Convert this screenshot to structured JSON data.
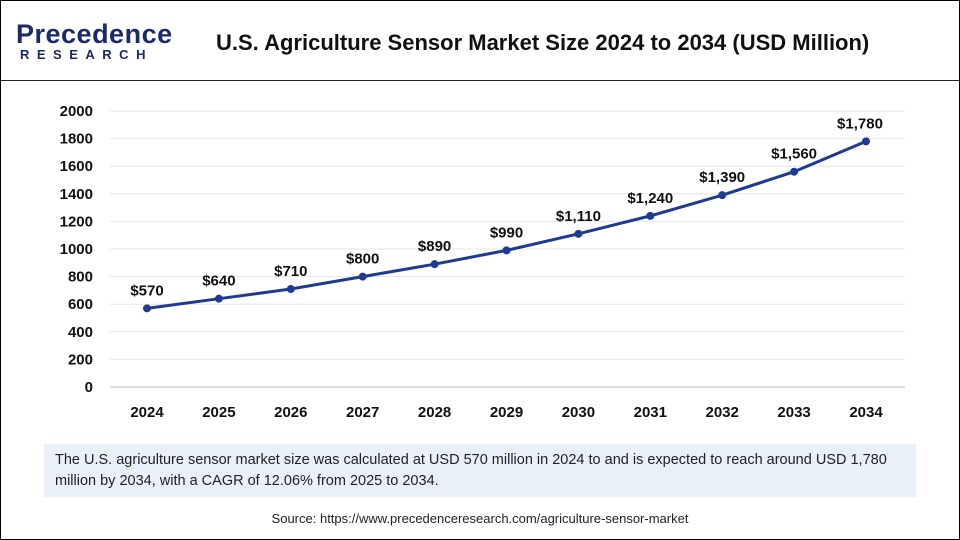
{
  "logo": {
    "line1": "Precedence",
    "line2": "RESEARCH"
  },
  "title": "U.S. Agriculture Sensor Market Size 2024 to 2034 (USD Million)",
  "chart_data": {
    "type": "line",
    "title": "U.S. Agriculture Sensor Market Size 2024 to 2034 (USD Million)",
    "categories": [
      "2024",
      "2025",
      "2026",
      "2027",
      "2028",
      "2029",
      "2030",
      "2031",
      "2032",
      "2033",
      "2034"
    ],
    "values": [
      570,
      640,
      710,
      800,
      890,
      990,
      1110,
      1240,
      1390,
      1560,
      1780
    ],
    "data_labels": [
      "$570",
      "$640",
      "$710",
      "$800",
      "$890",
      "$990",
      "$1,110",
      "$1,240",
      "$1,390",
      "$1,560",
      "$1,780"
    ],
    "yticks": [
      "0",
      "200",
      "400",
      "600",
      "800",
      "1000",
      "1200",
      "1400",
      "1600",
      "1800",
      "2000"
    ],
    "ylim": [
      0,
      2000
    ],
    "grid": true,
    "line_color": "#1f3a93"
  },
  "summary": "The U.S. agriculture sensor market size was calculated at USD 570 million in 2024 to and is expected to reach around USD 1,780 million by 2034, with a CAGR of 12.06% from 2025 to 2034.",
  "source": "Source: https://www.precedenceresearch.com/agriculture-sensor-market"
}
